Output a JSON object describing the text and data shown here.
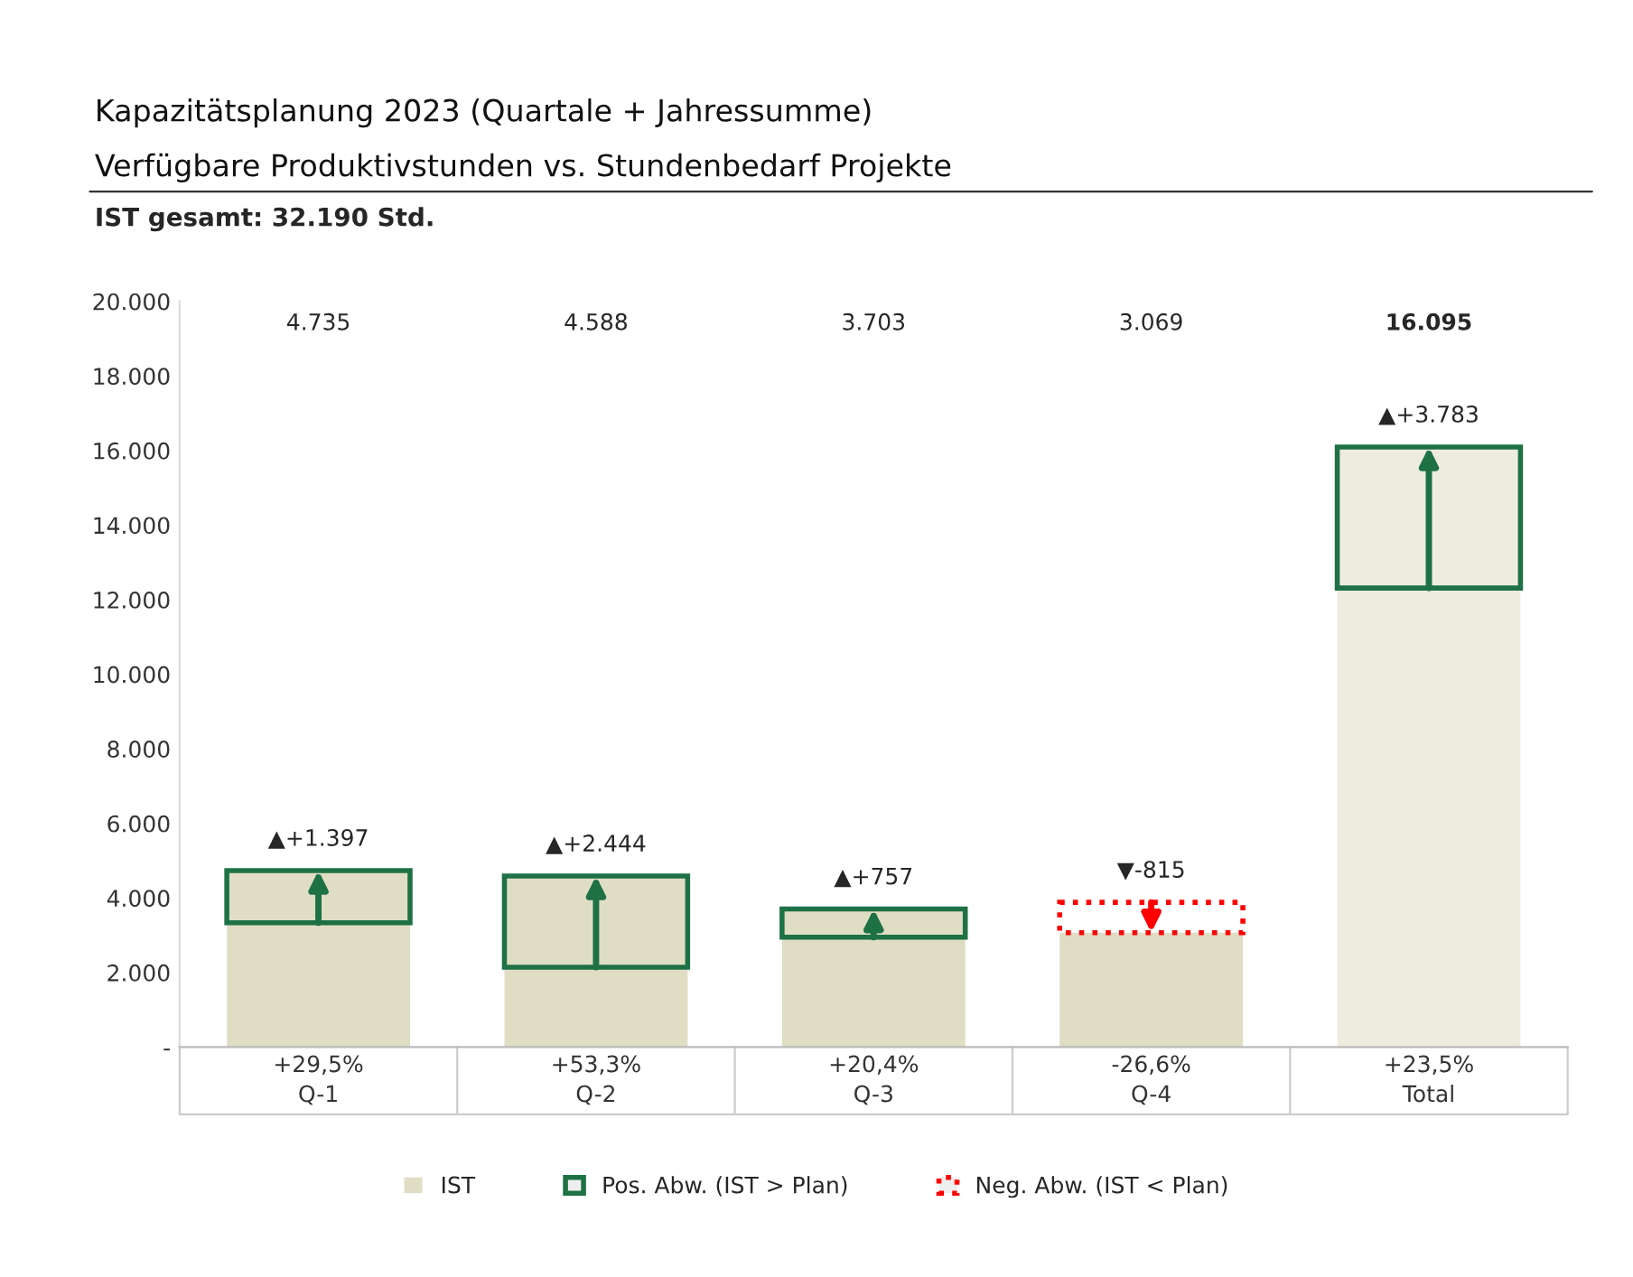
{
  "chart_data": {
    "type": "bar",
    "title": "Kapazitätsplanung 2023 (Quartale + Jahressumme)",
    "subtitle": "Verfügbare Produktivstunden vs. Stundenbedarf Projekte",
    "annotations": [
      "IST gesamt: 32.190 Std.",
      "+29,5%",
      "+53,3%",
      "+20,4%",
      "-26,6%",
      "+23,5%",
      "4.735",
      "4.588",
      "3.703",
      "3.069",
      "16.095"
    ],
    "categories": [
      "Q-1",
      "Q-2",
      "Q-3",
      "Q-4",
      "Total"
    ],
    "series": [
      {
        "name": "IST",
        "colors": [
          "#e0ddc5",
          "#e0ddc5",
          "#e0ddc5",
          "#e0ddc5",
          "#eeecdf"
        ],
        "values": [
          4735,
          4588,
          3703,
          3069,
          16095
        ]
      },
      {
        "name": "Pos. Abw. (IST > Plan)",
        "color": "#1e7145",
        "base": [
          3338,
          2144,
          2946,
          null,
          12312
        ],
        "values": [
          1397,
          2444,
          757,
          null,
          3783
        ],
        "value_labels": [
          "▲+1.397",
          "▲+2.444",
          "▲+757",
          null,
          "▲+3.783"
        ],
        "line_style": "solid"
      },
      {
        "name": "Neg. Abw. (IST < Plan)",
        "color": "#ff0000",
        "base": [
          null,
          null,
          null,
          3884,
          null
        ],
        "values": [
          null,
          null,
          null,
          -815,
          null
        ],
        "value_labels": [
          null,
          null,
          null,
          "▼-815",
          null
        ],
        "line_style": "dotted"
      }
    ],
    "ylim": [
      0,
      20000
    ],
    "yticks": [
      {
        "value": 0,
        "label": "-"
      },
      {
        "value": 2000,
        "label": "2.000"
      },
      {
        "value": 4000,
        "label": "4.000"
      },
      {
        "value": 6000,
        "label": "6.000"
      },
      {
        "value": 8000,
        "label": "8.000"
      },
      {
        "value": 10000,
        "label": "10.000"
      },
      {
        "value": 12000,
        "label": "12.000"
      },
      {
        "value": 14000,
        "label": "14.000"
      },
      {
        "value": 16000,
        "label": "16.000"
      },
      {
        "value": 18000,
        "label": "18.000"
      },
      {
        "value": 20000,
        "label": "20.000"
      }
    ],
    "grid": false,
    "legend": "bottom"
  }
}
